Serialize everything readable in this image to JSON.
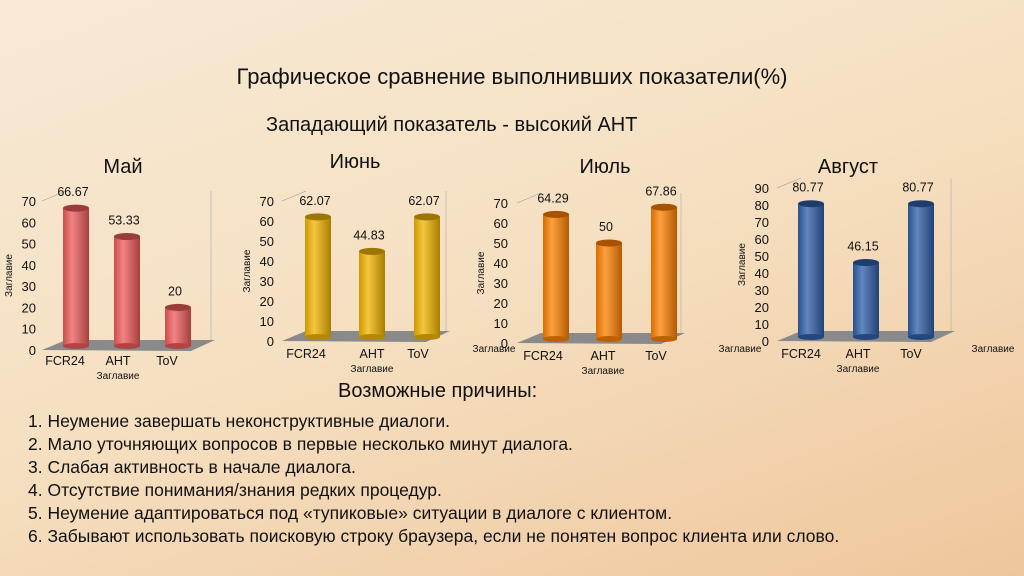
{
  "title": "Графическое сравнение выполнивших показатели(%)",
  "subtitle": "Западающий показатель - высокий АНТ",
  "causes_heading": "Возможные причины:",
  "causes": [
    "1. Неумение завершать  неконструктивные диалоги.",
    "2. Мало уточняющих вопросов в первые несколько минут диалога.",
    "3. Слабая активность в начале диалога.",
    "4. Отсутствие понимания/знания редких процедур.",
    "5. Неумение адаптироваться под «тупиковые» ситуации в диалоге с клиентом.",
    "6. Забывают использовать поисковую строку браузера, если не понятен вопрос клиента или слово."
  ],
  "chart_data": [
    {
      "type": "bar",
      "title": "Май",
      "categories": [
        "FCR24",
        "AHT",
        "ToV"
      ],
      "values": [
        66.67,
        53.33,
        20
      ],
      "ylim": [
        0,
        70
      ],
      "ystep": 10,
      "ylabel": "Заглавие",
      "xlabel": "Заглавие",
      "color": "#ef5a5a"
    },
    {
      "type": "bar",
      "title": "Июнь",
      "categories": [
        "FCR24",
        "AHT",
        "ToV"
      ],
      "values": [
        62.07,
        44.83,
        62.07
      ],
      "ylim": [
        0,
        70
      ],
      "ystep": 10,
      "ylabel": "Заглавие",
      "xlabel": "Заглавие",
      "color": "#f2b400"
    },
    {
      "type": "bar",
      "title": "Июль",
      "categories": [
        "FCR24",
        "AHT",
        "ToV"
      ],
      "values": [
        64.29,
        50,
        67.86
      ],
      "ylim": [
        0,
        70
      ],
      "ystep": 10,
      "ylabel": "Заглавие",
      "xlabel": "Заглавие",
      "side_label": "Заглавие",
      "color": "#ff8000"
    },
    {
      "type": "bar",
      "title": "Август",
      "categories": [
        "FCR24",
        "AHT",
        "ToV"
      ],
      "values": [
        80.77,
        46.15,
        80.77
      ],
      "ylim": [
        0,
        90
      ],
      "ystep": 10,
      "ylabel": "Заглавие",
      "xlabel": "Заглавие",
      "side_label": "Заглавие",
      "side_label2": "Заглавие",
      "color": "#2e5ea8"
    }
  ]
}
